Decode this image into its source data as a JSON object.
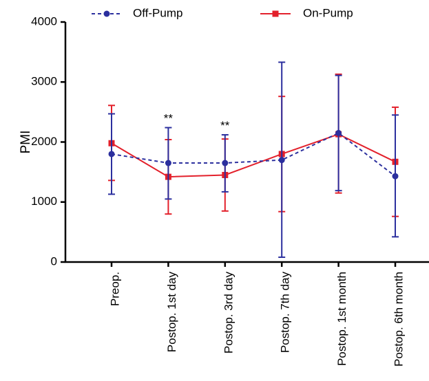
{
  "chart_data": {
    "type": "line",
    "ylabel": "PMI",
    "ylim": [
      0,
      4000
    ],
    "yticks": [
      0,
      1000,
      2000,
      3000,
      4000
    ],
    "categories": [
      "Preop.",
      "Postop. 1st day",
      "Postop. 3rd day",
      "Postop. 7th day",
      "Postop. 1st month",
      "Postop. 6th month"
    ],
    "legend_position": "top",
    "series": [
      {
        "name": "Off-Pump",
        "color": "#2b2f9e",
        "line_style": "dashed",
        "marker": "circle",
        "values": [
          1800,
          1650,
          1650,
          1700,
          2150,
          1430
        ],
        "error_upper": [
          2470,
          2240,
          2120,
          3330,
          3110,
          2450
        ],
        "error_lower": [
          1130,
          1050,
          1170,
          80,
          1190,
          420
        ]
      },
      {
        "name": "On-Pump",
        "color": "#e3202b",
        "line_style": "solid",
        "marker": "square",
        "values": [
          1980,
          1420,
          1450,
          1800,
          2130,
          1670
        ],
        "error_upper": [
          2610,
          2040,
          2050,
          2760,
          3130,
          2580
        ],
        "error_lower": [
          1360,
          800,
          850,
          840,
          1150,
          760
        ]
      }
    ],
    "annotations": [
      {
        "category_index": 1,
        "text": "**"
      },
      {
        "category_index": 2,
        "text": "**"
      }
    ]
  }
}
